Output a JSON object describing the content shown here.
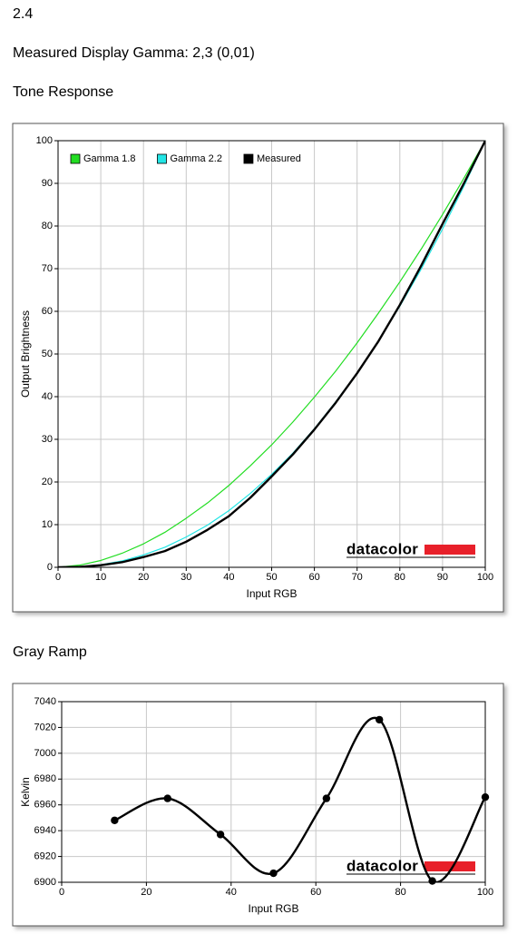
{
  "header": {
    "section": "2.4",
    "gamma": "Measured Display Gamma: 2,3 (0,01)"
  },
  "chart_data": [
    {
      "type": "line",
      "title": "Tone Response",
      "x_label": "Input RGB",
      "y_label": "Output Brightness",
      "x": [
        0,
        5,
        10,
        15,
        20,
        25,
        30,
        35,
        40,
        45,
        50,
        55,
        60,
        65,
        70,
        75,
        80,
        85,
        90,
        95,
        100
      ],
      "series": [
        {
          "name": "Gamma 1.8",
          "color": "#22dd22",
          "values": [
            0,
            0.5,
            1.6,
            3.3,
            5.5,
            8.2,
            11.5,
            15.1,
            19.2,
            23.8,
            28.7,
            34.1,
            39.9,
            46.0,
            52.6,
            59.6,
            66.9,
            74.6,
            82.7,
            91.2,
            100
          ]
        },
        {
          "name": "Gamma 2.2",
          "color": "#22e5e5",
          "values": [
            0,
            0.1,
            0.6,
            1.5,
            2.9,
            4.7,
            7.1,
            9.9,
            13.3,
            17.3,
            21.8,
            26.8,
            32.5,
            38.8,
            45.6,
            53.1,
            61.2,
            69.9,
            79.3,
            89.3,
            100
          ]
        },
        {
          "name": "Measured",
          "color": "#000000",
          "values": [
            0,
            0.1,
            0.5,
            1.2,
            2.4,
            3.8,
            6.0,
            8.8,
            12.0,
            16.3,
            21.3,
            26.5,
            32.3,
            38.6,
            45.5,
            53.0,
            61.5,
            70.7,
            80.5,
            90.0,
            100
          ]
        }
      ],
      "xlim": [
        0,
        100
      ],
      "ylim": [
        0,
        100
      ],
      "xticks": [
        0,
        10,
        20,
        30,
        40,
        50,
        60,
        70,
        80,
        90,
        100
      ],
      "yticks": [
        0,
        10,
        20,
        30,
        40,
        50,
        60,
        70,
        80,
        90,
        100
      ],
      "grid": true,
      "legend": "top-left",
      "watermark": "datacolor"
    },
    {
      "type": "line",
      "title": "Gray Ramp",
      "x_label": "Input RGB",
      "y_label": "Kelvin",
      "smooth": true,
      "markers": true,
      "x": [
        12.5,
        25,
        37.5,
        50,
        62.5,
        75,
        87.5,
        100
      ],
      "series": [
        {
          "color": "#000000",
          "values": [
            6948,
            6965,
            6937,
            6907,
            6965,
            7026,
            6901,
            6966
          ]
        }
      ],
      "xlim": [
        0,
        100
      ],
      "ylim": [
        6900,
        7040
      ],
      "xticks": [
        0,
        20,
        40,
        60,
        80,
        100
      ],
      "yticks": [
        6900,
        6920,
        6940,
        6960,
        6980,
        7000,
        7020,
        7040
      ],
      "grid": true,
      "watermark": "datacolor"
    }
  ]
}
